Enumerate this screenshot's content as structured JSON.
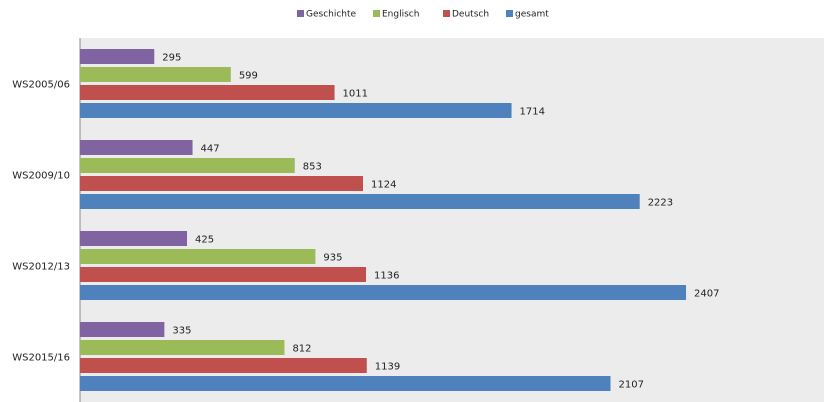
{
  "chart_data": {
    "type": "bar",
    "orientation": "horizontal",
    "categories": [
      "WS2005/06",
      "WS2009/10",
      "WS2012/13",
      "WS2015/16"
    ],
    "series": [
      {
        "name": "Geschichte",
        "color": "#8064a2",
        "values": [
          295,
          447,
          425,
          335
        ]
      },
      {
        "name": "Englisch",
        "color": "#9bbb59",
        "values": [
          599,
          853,
          935,
          812
        ]
      },
      {
        "name": "Deutsch",
        "color": "#c0504d",
        "values": [
          1011,
          1124,
          1136,
          1139
        ]
      },
      {
        "name": "gesamt",
        "color": "#4f81bd",
        "values": [
          1714,
          2223,
          2407,
          2107
        ]
      }
    ],
    "xlim": [
      0,
      2955
    ],
    "legend": "top"
  }
}
